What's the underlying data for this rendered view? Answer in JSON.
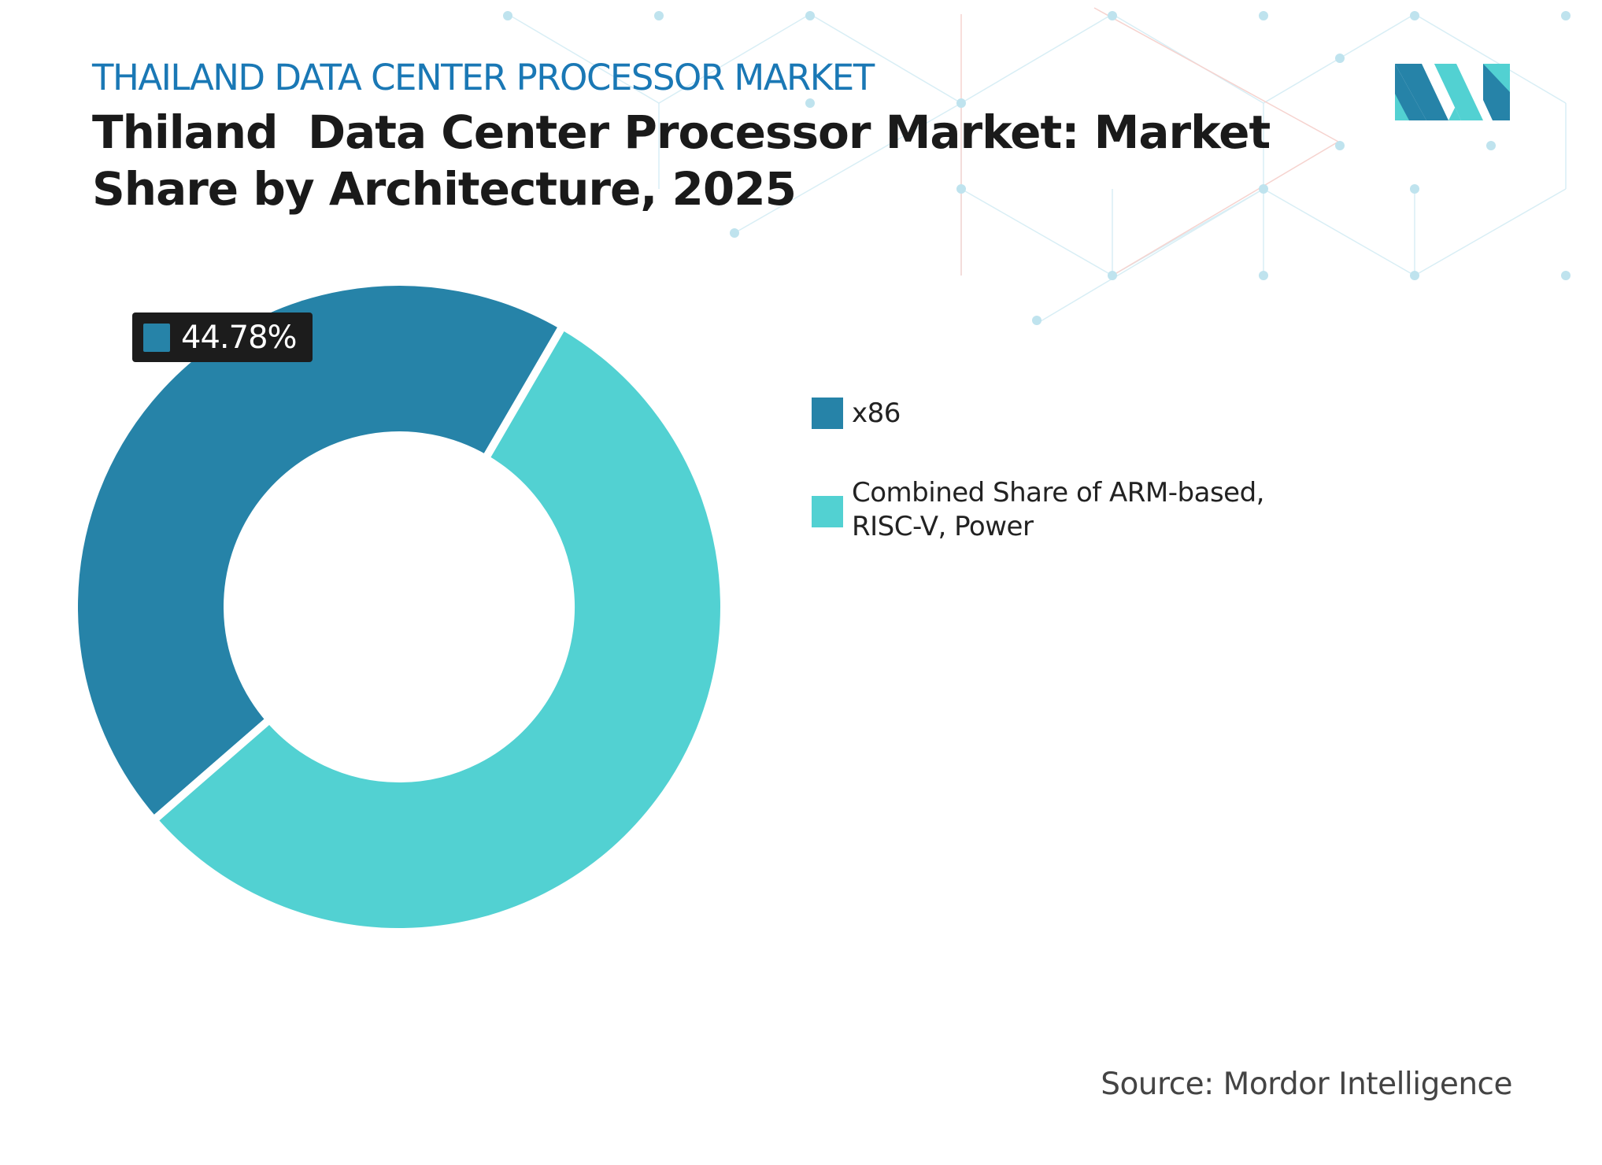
{
  "header": {
    "kicker": "THAILAND DATA CENTER PROCESSOR MARKET",
    "title_line1": "Thiland  Data Center Processor Market: Market",
    "title_line2": "Share by Architecture, 2025"
  },
  "colors": {
    "x86": "#2683a8",
    "other": "#52d1d2",
    "kicker": "#1a78b5"
  },
  "chart_data": {
    "type": "pie",
    "variant": "donut",
    "title": "Thiland  Data Center Processor Market: Market Share by Architecture, 2025",
    "categories": [
      "x86",
      "Combined Share of ARM-based, RISC-V, Power"
    ],
    "values": [
      44.78,
      55.22
    ],
    "unit": "%",
    "data_labels": [
      "44.78%"
    ],
    "legend_position": "right"
  },
  "legend": [
    {
      "label": "x86"
    },
    {
      "label": "Combined Share of ARM-based, RISC-V, Power"
    }
  ],
  "badge": {
    "value": "44.78%"
  },
  "source": "Source: Mordor Intelligence"
}
